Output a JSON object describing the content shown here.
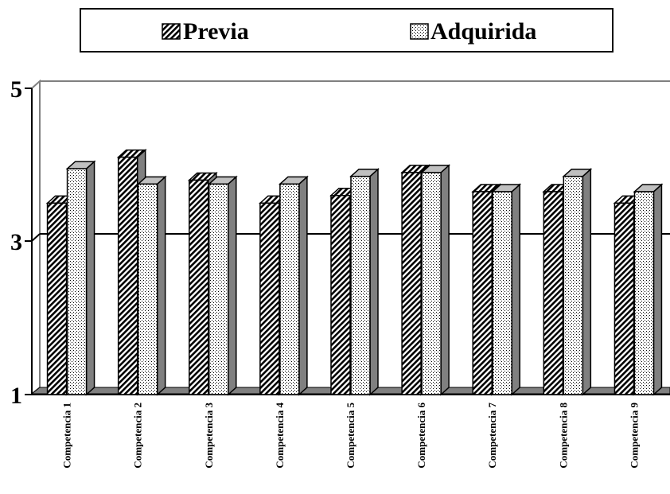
{
  "chart_data": {
    "type": "bar",
    "categories": [
      "Competencia 1",
      "Competencia 2",
      "Competencia 3",
      "Competencia 4",
      "Competencia 5",
      "Competencia 6",
      "Competencia 7",
      "Competencia 8",
      "Competencia 9"
    ],
    "series": [
      {
        "name": "Previa",
        "values": [
          3.5,
          4.1,
          3.8,
          3.5,
          3.6,
          3.9,
          3.65,
          3.65,
          3.5
        ]
      },
      {
        "name": "Adquirida",
        "values": [
          3.95,
          3.75,
          3.75,
          3.75,
          3.85,
          3.9,
          3.65,
          3.85,
          3.65
        ]
      }
    ],
    "ylim": [
      1,
      5
    ],
    "yticks": [
      "5",
      "3",
      "1"
    ],
    "grid": true,
    "legend_position": "top",
    "style": "3d-bar-patterned",
    "colors": {
      "frame": "#000000",
      "wall": "#ffffff",
      "floor": "#808080",
      "side_dark": "#808080"
    }
  }
}
